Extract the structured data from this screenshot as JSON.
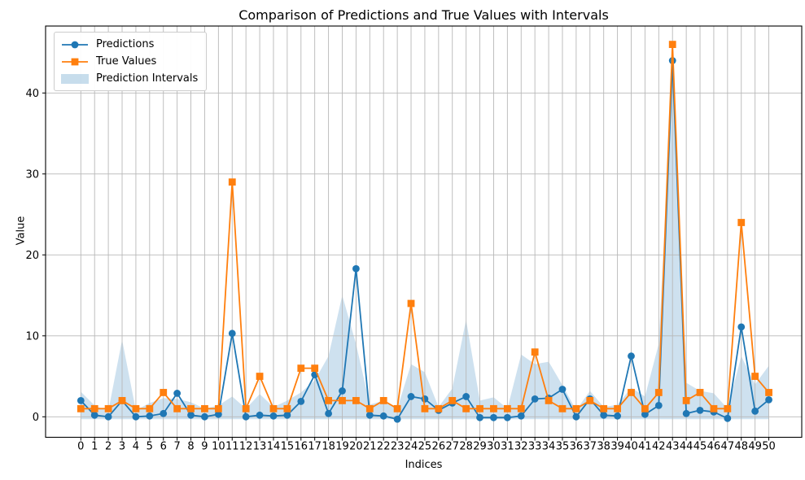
{
  "figure": {
    "title": "Comparison of Predictions and True Values with Intervals",
    "xlabel": "Indices",
    "ylabel": "Value"
  },
  "legend": {
    "items": [
      {
        "label": "Predictions",
        "type": "line-circle",
        "color": "#1f77b4"
      },
      {
        "label": "True Values",
        "type": "line-square",
        "color": "#ff7f0e"
      },
      {
        "label": "Prediction Intervals",
        "type": "patch",
        "color": "#1f77b4",
        "opacity": 0.25
      }
    ]
  },
  "chart_data": {
    "type": "line",
    "title": "Comparison of Predictions and True Values with Intervals",
    "xlabel": "Indices",
    "ylabel": "Value",
    "grid": true,
    "legend_position": "upper-left",
    "xlim": [
      -2.56,
      52.56
    ],
    "ylim": [
      -2.5,
      48.2
    ],
    "y_ticks": [
      0,
      10,
      20,
      30,
      40
    ],
    "x": [
      0,
      1,
      2,
      3,
      4,
      5,
      6,
      7,
      8,
      9,
      10,
      11,
      12,
      13,
      14,
      15,
      16,
      17,
      18,
      19,
      20,
      21,
      22,
      23,
      24,
      25,
      26,
      27,
      28,
      29,
      30,
      31,
      32,
      33,
      34,
      35,
      36,
      37,
      38,
      39,
      40,
      41,
      42,
      43,
      44,
      45,
      46,
      47,
      48,
      49,
      50
    ],
    "series": [
      {
        "name": "Predictions",
        "color": "#1f77b4",
        "marker": "circle",
        "values": [
          2.0,
          0.2,
          0.0,
          2.0,
          0.0,
          0.1,
          0.4,
          2.9,
          0.2,
          0.0,
          0.3,
          10.3,
          0.0,
          0.2,
          0.1,
          0.2,
          1.9,
          5.2,
          0.4,
          3.2,
          18.3,
          0.2,
          0.1,
          -0.3,
          2.5,
          2.2,
          0.8,
          1.7,
          2.5,
          -0.1,
          -0.1,
          -0.1,
          0.1,
          2.2,
          2.3,
          3.4,
          0.0,
          2.2,
          0.2,
          0.1,
          7.5,
          0.3,
          1.4,
          44.0,
          0.4,
          0.8,
          0.6,
          -0.2,
          11.1,
          0.7,
          2.1
        ]
      },
      {
        "name": "True Values",
        "color": "#ff7f0e",
        "marker": "square",
        "values": [
          1,
          1,
          1,
          2,
          1,
          1,
          3,
          1,
          1,
          1,
          1,
          29,
          1,
          5,
          1,
          1,
          6,
          6,
          2,
          2,
          2,
          1,
          2,
          1,
          14,
          1,
          1,
          2,
          1,
          1,
          1,
          1,
          1,
          8,
          2,
          1,
          1,
          2,
          1,
          1,
          3,
          1,
          3,
          46,
          2,
          3,
          1,
          1,
          24,
          5,
          3
        ]
      }
    ],
    "band": {
      "name": "Prediction Intervals",
      "color": "#1f77b4",
      "opacity": 0.22,
      "upper": [
        3.1,
        1.4,
        0.7,
        9.5,
        0.8,
        1.7,
        2.3,
        2.2,
        1.8,
        1.0,
        1.4,
        2.5,
        1.0,
        2.8,
        1.2,
        2.0,
        3.0,
        4.5,
        7.5,
        15.0,
        9.0,
        1.5,
        2.0,
        1.0,
        6.5,
        5.5,
        1.2,
        3.5,
        12.0,
        2.0,
        2.4,
        1.0,
        7.7,
        6.5,
        6.8,
        3.9,
        0.8,
        3.2,
        1.2,
        1.5,
        3.6,
        2.5,
        9.0,
        43.0,
        4.2,
        3.2,
        2.9,
        1.0,
        7.5,
        4.0,
        6.3
      ],
      "lower": [
        -0.3,
        -0.3,
        -0.3,
        -0.3,
        -0.3,
        -0.3,
        -0.3,
        -0.3,
        -0.3,
        -0.3,
        -0.3,
        -0.3,
        -0.3,
        -0.3,
        -0.3,
        -0.3,
        -0.3,
        -0.3,
        -0.3,
        -0.3,
        -0.3,
        -0.3,
        -0.3,
        -0.3,
        -0.3,
        -0.3,
        -0.3,
        -0.3,
        -0.3,
        -0.3,
        -0.3,
        -0.3,
        -0.3,
        -0.3,
        -0.3,
        -0.3,
        -0.3,
        -0.3,
        -0.3,
        -0.3,
        -0.3,
        -0.3,
        -0.3,
        -0.3,
        -0.3,
        -0.3,
        -0.3,
        -0.3,
        -0.3,
        -0.3,
        -0.3
      ]
    },
    "style": {
      "grid_color": "#b8b8b8",
      "spine_color": "#000000",
      "tick_label_size": 13,
      "background": "#ffffff"
    }
  }
}
